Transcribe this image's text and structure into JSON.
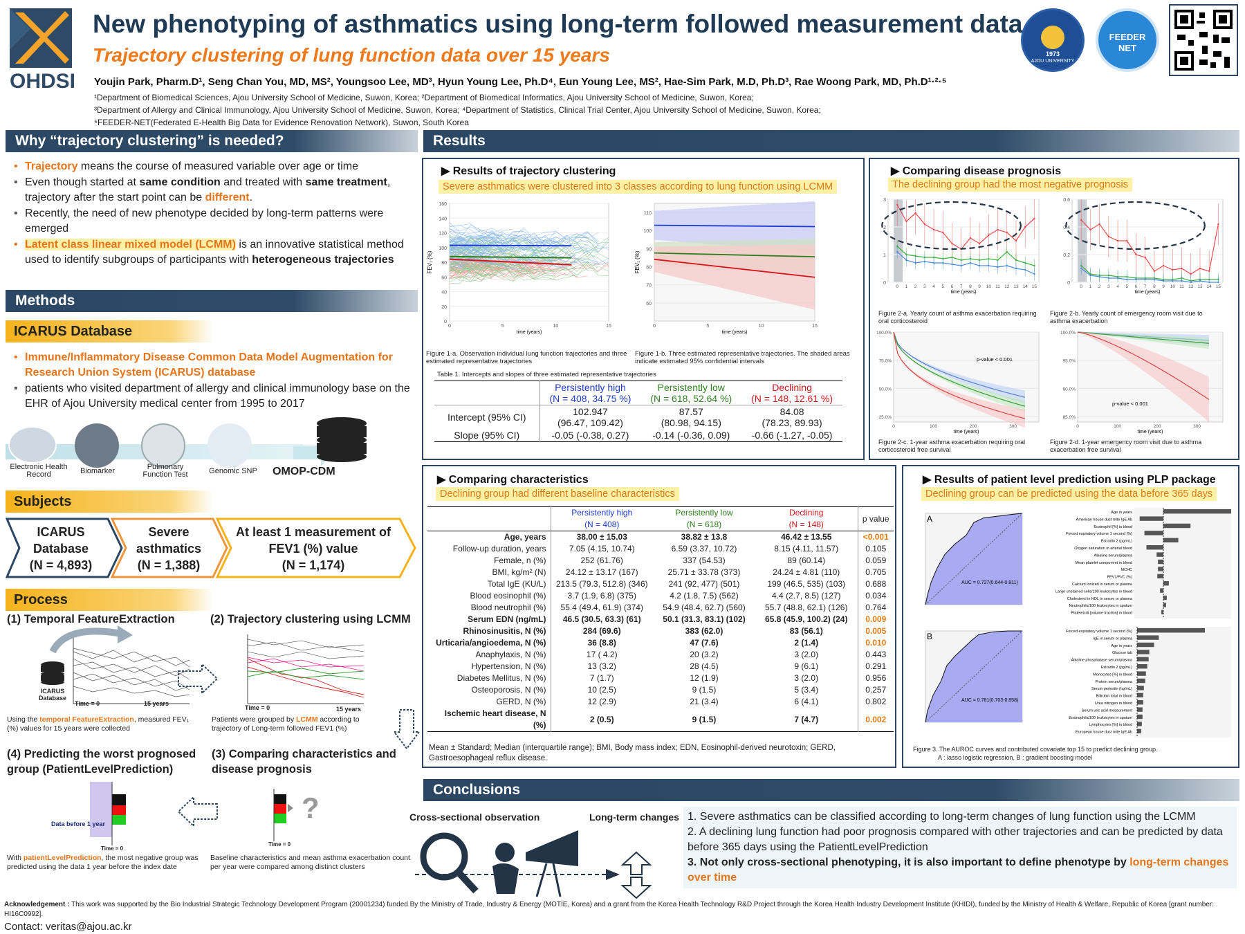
{
  "header": {
    "title": "New phenotyping of asthmatics using long-term followed measurement data",
    "subtitle": "Trajectory clustering of lung function data over 15 years",
    "ohdsi": "OHDSI",
    "authors": "Youjin Park, Pharm.D¹, Seng Chan You, MD, MS², Youngsoo Lee, MD³, Hyun Young Lee, Ph.D⁴, Eun Young Lee, MS², Hae-Sim Park, M.D, Ph.D³, Rae Woong Park, MD, Ph.D¹·²·⁵",
    "affil1": "¹Department of Biomedical Sciences, Ajou University School of Medicine, Suwon, Korea; ²Department of Biomedical Informatics, Ajou University School of Medicine, Suwon, Korea;",
    "affil2": "³Department of Allergy and Clinical Immunology, Ajou University School of Medicine, Suwon, Korea; ⁴Department of Statistics, Clinical Trial Center, Ajou University School of Medicine, Suwon, Korea;",
    "affil3": "⁵FEEDER-NET(Federated E-Health Big Data for Evidence Renovation Network), Suwon, South Korea",
    "ajou_text": "AJOU UNIVERSITY",
    "ajou_year": "1973",
    "feeder1": "FEEDER",
    "feeder2": "NET"
  },
  "why": {
    "header": "Why “trajectory clustering” is needed?",
    "b1a": "Trajectory",
    "b1b": " means the course of measured variable over age or time",
    "b2a": "Even though started at ",
    "b2b": "same condition",
    "b2c": " and treated with ",
    "b2d": "same treatment",
    "b2e": ", trajectory after the start point can be ",
    "b2f": "different",
    "b2g": ".",
    "b3": "Recently, the need of new phenotype decided by long-term patterns were emerged",
    "b4a": "Latent class linear mixed model (LCMM)",
    "b4b": " is an innovative statistical method used to identify subgroups of participants with ",
    "b4c": "heterogeneous trajectories"
  },
  "methods": {
    "header": "Methods",
    "icarus_hdr": "ICARUS Database",
    "b1": "Immune/Inflammatory Disease Common Data Model Augmentation for Research Union System (ICARUS) database",
    "b2": "patients who visited department of allergy and clinical immunology base on the EHR of Ajou University medical center from 1995 to 2017",
    "icons": [
      "Electronic Health Record",
      "Biomarker",
      "Pulmonary Function Test",
      "Genomic SNP"
    ],
    "omop": "OMOP-CDM"
  },
  "subjects": {
    "header": "Subjects",
    "s1": "ICARUS Database",
    "s1n": "(N = 4,893)",
    "s2": "Severe asthmatics",
    "s2n": "(N = 1,388)",
    "s3": "At least 1 measurement of FEV1 (%) value",
    "s3n": "(N = 1,174)"
  },
  "process": {
    "header": "Process",
    "p1": "(1) Temporal FeatureExtraction",
    "p2": "(2) Trajectory clustering using LCMM",
    "p3": "(3) Comparing characteristics and disease prognosis",
    "p4": "(4) Predicting the worst prognosed group (PatientLevelPrediction)",
    "icarus_db": "ICARUS Database",
    "time0": "Time = 0",
    "y15": "15 years",
    "d1a": "Using the ",
    "d1b": "temporal FeatureExtraction",
    "d1c": ", measured FEV₁ (%) values for 15 years were collected",
    "d2a": "Patients were grouped by ",
    "d2b": "LCMM",
    "d2c": " according to trajectory of Long-term followed FEV1 (%)",
    "d3": "Baseline characteristics and mean asthma exacerbation count per year were compared among distinct clusters",
    "d4a": "With ",
    "d4b": "patientLevelPrediction",
    "d4c": ", the most negative group was predicted using the data 1 year before the index date",
    "before": "Data before 1 year",
    "q": "?"
  },
  "results": {
    "header": "Results",
    "traj": {
      "title": "▶ Results of trajectory clustering",
      "hl": "Severe asthmatics were clustered into 3 classes according to lung function using LCMM",
      "cap1": "Figure 1-a. Observation individual lung function trajectories and three estimated representative trajectories",
      "cap2": "Figure 1-b. Three estimated representative trajectories. The shaded areas indicate estimated 95% confidential intervals",
      "tcap": "Table 1. Intercepts and slopes of three estimated representative trajectories",
      "fev": "FEV₁ (%)",
      "time": "time (years)",
      "cols": [
        {
          "name": "Persistently high",
          "n": "(N = 408, 34.75 %)",
          "color": "#1f3ccf"
        },
        {
          "name": "Persistently low",
          "n": "(N = 618, 52.64 %)",
          "color": "#2e7d1e"
        },
        {
          "name": "Declining",
          "n": "(N = 148, 12.61 %)",
          "color": "#d2161a"
        }
      ],
      "int_label": "Intercept (95% CI)",
      "slope_label": "Slope  (95% CI)",
      "int": [
        "102.947",
        "87.57",
        "84.08"
      ],
      "int_ci": [
        "(96.47, 109.42)",
        "(80.98, 94.15)",
        "(78.23, 89.93)"
      ],
      "slope": [
        "-0.05 (-0.38, 0.27)",
        "-0.14 (-0.36, 0.09)",
        "-0.66 (-1.27, -0.05)"
      ]
    },
    "prog": {
      "title": "▶ Comparing disease prognosis",
      "hl": "The declining group had the most negative prognosis",
      "c2a": "Figure 2-a. Yearly count of asthma exacerbation requiring oral corticosteroid",
      "c2b": "Figure 2-b. Yearly count of emergency room visit due to asthma exacerbation",
      "c2c": "Figure 2-c. 1-year asthma exacerbation requiring oral corticosteroid free survival",
      "c2d": "Figure 2-d. 1-year emergency room visit due to asthma exacerbation free survival",
      "pv": "p-value < 0.001",
      "time": "time (years)"
    },
    "char": {
      "title": "▶ Comparing characteristics",
      "hl": "Declining group had different baseline characteristics",
      "h1": "Persistently high",
      "h1n": "(N = 408)",
      "h2": "Persistently low",
      "h2n": "(N = 618)",
      "h3": "Declining",
      "h3n": "(N = 148)",
      "hp": "p value",
      "rows": [
        [
          "Age, years",
          "38.00 ± 15.03",
          "38.82 ± 13.8",
          "46.42 ± 13.55",
          "<0.001",
          true,
          true
        ],
        [
          "Follow-up duration, years",
          "7.05 (4.15, 10.74)",
          "6.59 (3.37, 10.72)",
          "8.15 (4.11, 11.57)",
          "0.105",
          false,
          false
        ],
        [
          "Female, n (%)",
          "252 (61.76)",
          "337 (54.53)",
          "89 (60.14)",
          "0.059",
          false,
          false
        ],
        [
          "BMI, kg/m² (N)",
          "24.12 ± 13.17 (167)",
          "25.71 ± 33.78 (373)",
          "24.24 ± 4.81 (110)",
          "0.705",
          false,
          false
        ],
        [
          "Total IgE (KU/L)",
          "213.5 (79.3, 512.8) (346)",
          "241 (92, 477) (501)",
          "199 (46.5, 535) (103)",
          "0.688",
          false,
          false
        ],
        [
          "Blood eosinophil (%)",
          "3.7 (1.9, 6.8) (375)",
          "4.2 (1.8, 7.5) (562)",
          "4.4 (2.7, 8.5) (127)",
          "0.034",
          false,
          false
        ],
        [
          "Blood neutrophil (%)",
          "55.4 (49.4, 61.9) (374)",
          "54.9 (48.4, 62.7) (560)",
          "55.7 (48.8, 62.1) (126)",
          "0.764",
          false,
          false
        ],
        [
          "Serum EDN (ng/mL)",
          "46.5 (30.5, 63.3) (61)",
          "50.1 (31.3, 83.1) (102)",
          "65.8 (45.9, 100.2) (24)",
          "0.009",
          true,
          true
        ],
        [
          "Rhinosinusitis, N (%)",
          "284 (69.6)",
          "383 (62.0)",
          "83 (56.1)",
          "0.005",
          true,
          true
        ],
        [
          "Urticaria/angioedema, N (%)",
          "36 (8.8)",
          "47 (7.6)",
          "2 (1.4)",
          "0.010",
          true,
          true
        ],
        [
          "Anaphylaxis, N (%)",
          "17 ( 4.2)",
          "20 (3.2)",
          "3 (2.0)",
          "0.443",
          false,
          false
        ],
        [
          "Hypertension, N (%)",
          "13 (3.2)",
          "28 (4.5)",
          "9 (6.1)",
          "0.291",
          false,
          false
        ],
        [
          "Diabetes Mellitus, N (%)",
          "7 (1.7)",
          "12 (1.9)",
          "3 (2.0)",
          "0.956",
          false,
          false
        ],
        [
          "Osteoporosis, N (%)",
          "10 (2.5)",
          "9 (1.5)",
          "5 (3.4)",
          "0.257",
          false,
          false
        ],
        [
          "GERD, N (%)",
          "12 (2.9)",
          "21 (3.4)",
          "6 (4.1)",
          "0.802",
          false,
          false
        ],
        [
          "Ischemic heart disease, N (%)",
          "2 (0.5)",
          "9 (1.5)",
          "7 (4.7)",
          "0.002",
          true,
          true
        ]
      ],
      "note": "Mean ± Standard; Median (interquartile range); BMI, Body mass index; EDN, Eosinophil-derived neurotoxin; GERD, Gastroesophageal reflux disease."
    },
    "plp": {
      "title": "▶ Results of patient level prediction using PLP package",
      "hl": "Declining group can be predicted using the data before 365 days",
      "a": "A",
      "b": "B",
      "aucA": "AUC = 0.727(0.644-0.811)",
      "aucB": "AUC = 0.781(0.703-0.858)",
      "cap": "Figure 3. The AUROC curves and contributed covariate top 15 to predict declining group.",
      "cap2": "A : lasso logistic regression, B : gradient boosting model",
      "featA": [
        "Age in years",
        "American house dust mite IgE Ab",
        "Eosinophil [%] in blood",
        "Forced expiratory volume 1 second (%)",
        "Estradio 2 (pg/mL)",
        "Oxygen saturation in arterial blood",
        "Alkaline serum/plasma",
        "Mean platelet component in blood",
        "MCHC",
        "FEV1/FVC (%)",
        "Calcium ionized in serum or plasma",
        "Large unstained cells/100 leukocytes in blood",
        "Cholesterol in HDL in serum or plasma",
        "Neutrophils/100 leukocytes in sputum",
        "Plateletcrit [volume fraction] in blood"
      ],
      "featB": [
        "Forced expiratory volume 1 second (%)",
        "IgE in serum or plasma",
        "Age in years",
        "Glucose lab",
        "Alkaline phosphatase serum/plasma",
        "Estradio 2 (pg/mL)",
        "Monocytes [%] in blood",
        "Protein serum/plasma",
        "Serum periostin (ng/mL)",
        "Bilirubin total in blood",
        "Urea nitrogen in blood",
        "Serum uric acid measurement",
        "Eosinophils/100 leukocytes in sputum",
        "Lymphocytes [%] in blood",
        "European house dust mite IgE Ab"
      ]
    }
  },
  "conclusions": {
    "header": "Conclusions",
    "cross": "Cross-sectional observation",
    "long": "Long-term changes",
    "c1": "1.  Severe asthmatics can be classified according to long-term changes of lung function using the LCMM",
    "c2": "2. A declining lung function had poor prognosis compared with other trajectories and can be predicted by data before 365 days using the PatientLevelPrediction",
    "c3a": "3.  Not only cross-sectional phenotyping, it is also important to define phenotype by ",
    "c3b": "long-term changes over time"
  },
  "ack": {
    "label": "Acknowledgement :",
    "text": " This work was supported by the Bio Industrial Strategic Technology Development Program (20001234) funded By the Ministry of Trade, Industry & Energy (MOTIE, Korea) and a grant from the Korea Health Technology R&D Project through the Korea Health Industry Development Institute (KHIDI), funded by the Ministry of Health & Welfare, Republic of Korea [grant number: HI16C0992].",
    "contact": "Contact:  veritas@ajou.ac.kr"
  },
  "chart_data": [
    {
      "type": "line",
      "title": "Figure 1-b",
      "xlabel": "time (years)",
      "ylabel": "FEV₁ (%)",
      "xlim": [
        0,
        15
      ],
      "ylim": [
        50,
        115
      ],
      "series": [
        {
          "name": "Persistently high",
          "x": [
            0,
            15
          ],
          "y": [
            102.9,
            102.2
          ]
        },
        {
          "name": "Persistently low",
          "x": [
            0,
            15
          ],
          "y": [
            87.6,
            85.5
          ]
        },
        {
          "name": "Declining",
          "x": [
            0,
            15
          ],
          "y": [
            84.1,
            74.2
          ]
        }
      ]
    },
    {
      "type": "line",
      "title": "Figure 2-a",
      "xlabel": "time (years)",
      "ylim": [
        0,
        3
      ],
      "x": [
        0,
        1,
        2,
        3,
        4,
        5,
        6,
        7,
        8,
        9,
        10,
        11,
        12,
        13,
        14,
        15
      ],
      "series": [
        {
          "name": "Declining",
          "values": [
            2.8,
            2.2,
            2.5,
            2.1,
            1.9,
            1.8,
            1.4,
            1.2,
            1.6,
            1.4,
            1.7,
            1.9,
            1.8,
            1.5,
            2.0,
            2.3
          ]
        },
        {
          "name": "Persistently low",
          "values": [
            1.3,
            1.0,
            0.95,
            0.9,
            0.9,
            0.85,
            0.9,
            0.8,
            0.85,
            0.8,
            0.85,
            0.8,
            1.1,
            0.8,
            0.7,
            0.6
          ]
        },
        {
          "name": "Persistently high",
          "values": [
            1.1,
            0.8,
            0.7,
            0.75,
            0.7,
            0.7,
            0.65,
            0.6,
            0.7,
            0.6,
            0.6,
            0.55,
            0.6,
            0.5,
            0.45,
            0.3
          ]
        }
      ]
    },
    {
      "type": "line",
      "title": "Figure 2-b",
      "xlabel": "time (years)",
      "ylim": [
        0,
        0.6
      ],
      "x": [
        0,
        1,
        2,
        3,
        4,
        5,
        6,
        7,
        8,
        9,
        10,
        11,
        12,
        13,
        14,
        15
      ],
      "series": [
        {
          "name": "Declining",
          "values": [
            0.45,
            0.38,
            0.42,
            0.33,
            0.3,
            0.3,
            0.2,
            0.18,
            0.08,
            0.12,
            0.09,
            0.1,
            0.06,
            0.1,
            0.08,
            0.42
          ]
        },
        {
          "name": "Persistently low",
          "values": [
            0.12,
            0.06,
            0.05,
            0.05,
            0.04,
            0.04,
            0.03,
            0.03,
            0.03,
            0.02,
            0.02,
            0.03,
            0.01,
            0.02,
            0.02,
            0.02
          ]
        },
        {
          "name": "Persistently high",
          "values": [
            0.1,
            0.05,
            0.04,
            0.03,
            0.03,
            0.02,
            0.02,
            0.02,
            0.02,
            0.01,
            0.01,
            0.01,
            0.0,
            0.01,
            0.0,
            0.0
          ]
        }
      ]
    }
  ]
}
